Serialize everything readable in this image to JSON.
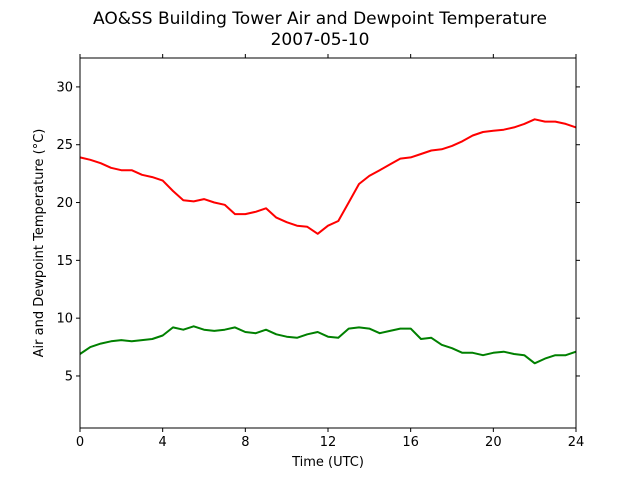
{
  "chart_data": {
    "type": "line",
    "title": "AO&SS Building Tower Air and Dewpoint Temperature",
    "subtitle": "2007-05-10",
    "xlabel": "Time (UTC)",
    "ylabel": "Air and Dewpoint Temperature (°C)",
    "xlim": [
      0,
      24
    ],
    "ylim": [
      0.5,
      32.5
    ],
    "xticks": [
      0,
      4,
      8,
      12,
      16,
      20,
      24
    ],
    "yticks": [
      5,
      10,
      15,
      20,
      25,
      30
    ],
    "grid": false,
    "legend": "none",
    "series": [
      {
        "color": "#ff0000",
        "x": [
          0,
          0.5,
          1,
          1.5,
          2,
          2.5,
          3,
          3.5,
          4,
          4.5,
          5,
          5.5,
          6,
          6.5,
          7,
          7.5,
          8,
          8.5,
          9,
          9.5,
          10,
          10.5,
          11,
          11.5,
          12,
          12.5,
          13,
          13.5,
          14,
          14.5,
          15,
          15.5,
          16,
          16.5,
          17,
          17.5,
          18,
          18.5,
          19,
          19.5,
          20,
          20.5,
          21,
          21.5,
          22,
          22.5,
          23,
          23.5,
          24
        ],
        "y": [
          23.9,
          23.7,
          23.4,
          23.0,
          22.8,
          22.8,
          22.4,
          22.2,
          21.9,
          21.0,
          20.2,
          20.1,
          20.3,
          20.0,
          19.8,
          19.0,
          19.0,
          19.2,
          19.5,
          18.7,
          18.3,
          18.0,
          17.9,
          17.3,
          18.0,
          18.4,
          20.0,
          21.6,
          22.3,
          22.8,
          23.3,
          23.8,
          23.9,
          24.2,
          24.5,
          24.6,
          24.9,
          25.3,
          25.8,
          26.1,
          26.2,
          26.3,
          26.5,
          26.8,
          27.2,
          27.0,
          27.0,
          26.8,
          26.5
        ]
      },
      {
        "color": "#008000",
        "x": [
          0,
          0.5,
          1,
          1.5,
          2,
          2.5,
          3,
          3.5,
          4,
          4.5,
          5,
          5.5,
          6,
          6.5,
          7,
          7.5,
          8,
          8.5,
          9,
          9.5,
          10,
          10.5,
          11,
          11.5,
          12,
          12.5,
          13,
          13.5,
          14,
          14.5,
          15,
          15.5,
          16,
          16.5,
          17,
          17.5,
          18,
          18.5,
          19,
          19.5,
          20,
          20.5,
          21,
          21.5,
          22,
          22.5,
          23,
          23.5,
          24
        ],
        "y": [
          6.9,
          7.5,
          7.8,
          8.0,
          8.1,
          8.0,
          8.1,
          8.2,
          8.5,
          9.2,
          9.0,
          9.3,
          9.0,
          8.9,
          9.0,
          9.2,
          8.8,
          8.7,
          9.0,
          8.6,
          8.4,
          8.3,
          8.6,
          8.8,
          8.4,
          8.3,
          9.1,
          9.2,
          9.1,
          8.7,
          8.9,
          9.1,
          9.1,
          8.2,
          8.3,
          7.7,
          7.4,
          7.0,
          7.0,
          6.8,
          7.0,
          7.1,
          6.9,
          6.8,
          6.1,
          6.5,
          6.8,
          6.8,
          7.1
        ]
      }
    ]
  }
}
